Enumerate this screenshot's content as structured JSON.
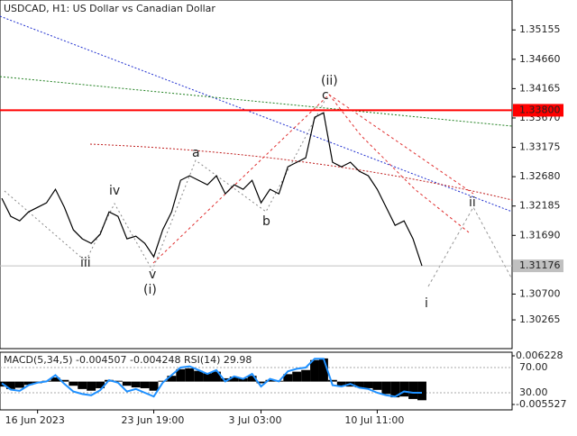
{
  "chart_data": [
    {
      "type": "line",
      "title": "USDCAD, H1:  US Dollar vs Canadian Dollar",
      "categories": [
        null,
        null,
        null,
        null,
        "16 Jun 2023",
        null,
        null,
        null,
        null,
        null,
        null,
        null,
        null,
        null,
        null,
        null,
        null,
        "23 Jun 19:00",
        null,
        null,
        null,
        null,
        null,
        null,
        null,
        null,
        null,
        null,
        null,
        "3 Jul 03:00",
        null,
        null,
        null,
        null,
        null,
        null,
        null,
        null,
        null,
        null,
        null,
        null,
        "10 Jul 11:00",
        null,
        null,
        null,
        null,
        null
      ],
      "series": [
        {
          "name": "USDCAD",
          "color": "#000000",
          "values": [
            1.32315,
            1.32011,
            1.31935,
            1.32087,
            1.32163,
            1.32239,
            1.32467,
            1.32163,
            1.31784,
            1.31632,
            1.31556,
            1.31708,
            1.32087,
            1.32011,
            1.31632,
            1.31677,
            1.31556,
            1.31328,
            1.31784,
            1.32087,
            1.32619,
            1.32695,
            1.32619,
            1.32543,
            1.32695,
            1.32391,
            1.32543,
            1.32467,
            1.32619,
            1.32239,
            1.32467,
            1.32391,
            1.32847,
            1.32923,
            1.32998,
            1.33682,
            1.33758,
            1.32923,
            1.32847,
            1.32923,
            1.32771,
            1.32695,
            1.32467,
            1.32163,
            1.31859,
            1.31935,
            1.31632,
            1.31176
          ]
        }
      ],
      "ylim": [
        1.2978,
        1.3566
      ],
      "yticks": [
        {
          "value": 1.35155,
          "label": "1.35155"
        },
        {
          "value": 1.3466,
          "label": "1.34660"
        },
        {
          "value": 1.34165,
          "label": "1.34165"
        },
        {
          "value": 1.3367,
          "label": "1.33670"
        },
        {
          "value": 1.33175,
          "label": "1.33175"
        },
        {
          "value": 1.3268,
          "label": "1.32680"
        },
        {
          "value": 1.32185,
          "label": "1.32185"
        },
        {
          "value": 1.3169,
          "label": "1.31690"
        },
        {
          "value": 1.307,
          "label": "1.30700"
        },
        {
          "value": 1.30265,
          "label": "1.30265"
        }
      ],
      "hlines": [
        {
          "value": 1.338,
          "label": "1.33800",
          "color": "#ff0000"
        },
        {
          "value": 1.31176,
          "label": "1.31176",
          "color": "#c0c0c0"
        }
      ],
      "annotations": [
        {
          "text": "(ii)",
          "color": "#e00000"
        },
        {
          "text": "c",
          "color": "#808080"
        },
        {
          "text": "a",
          "color": "#808080"
        },
        {
          "text": "b",
          "color": "#808080"
        },
        {
          "text": "iv",
          "color": "#808080"
        },
        {
          "text": "iii",
          "color": "#808080"
        },
        {
          "text": "v",
          "color": "#808080"
        },
        {
          "text": "(i)",
          "color": "#e00000"
        },
        {
          "text": "ii",
          "color": "#808080"
        },
        {
          "text": "i",
          "color": "#808080"
        }
      ]
    },
    {
      "type": "indicator",
      "title": "MACD(5,34,5) -0.004507 -0.004248 RSI(14) 29.98",
      "series": [
        {
          "name": "MACD",
          "color": "#000000",
          "values": [
            -0.0012,
            -0.0018,
            -0.0015,
            -0.0008,
            -0.0004,
            0.0002,
            0.001,
            0.0004,
            -0.001,
            -0.0018,
            -0.0022,
            -0.0016,
            0.0004,
            0.0002,
            -0.001,
            -0.0014,
            -0.0016,
            -0.0022,
            0.0002,
            0.0014,
            0.003,
            0.0032,
            0.0026,
            0.002,
            0.0024,
            0.0008,
            0.0012,
            0.0008,
            0.0014,
            -0.0004,
            0.0004,
            0.0002,
            0.0018,
            0.0024,
            0.0028,
            0.0052,
            0.0056,
            0.0004,
            -0.001,
            -0.0012,
            -0.0014,
            -0.0016,
            -0.002,
            -0.003,
            -0.0038,
            -0.0036,
            -0.0042,
            -0.004507
          ]
        },
        {
          "name": "RSI(14)",
          "color": "#1e90ff",
          "axis": "y2",
          "values": [
            45,
            35,
            33,
            42,
            46,
            48,
            58,
            44,
            32,
            28,
            26,
            34,
            50,
            46,
            32,
            36,
            30,
            24,
            46,
            58,
            70,
            72,
            66,
            60,
            66,
            48,
            56,
            52,
            60,
            40,
            52,
            48,
            64,
            68,
            70,
            84,
            84,
            42,
            40,
            44,
            38,
            36,
            30,
            26,
            24,
            32,
            30,
            29.98
          ]
        }
      ],
      "ylim": [
        -0.005527,
        0.006228
      ],
      "yticks": [
        {
          "value": 0.006228,
          "label": "0.006228"
        },
        {
          "value": -0.005527,
          "label": "-0.005527"
        }
      ],
      "y2lim": [
        11.4,
        88.6
      ],
      "y2ticks": [
        {
          "value": 70,
          "label": "70.00"
        },
        {
          "value": 30,
          "label": "30.00"
        }
      ]
    }
  ]
}
